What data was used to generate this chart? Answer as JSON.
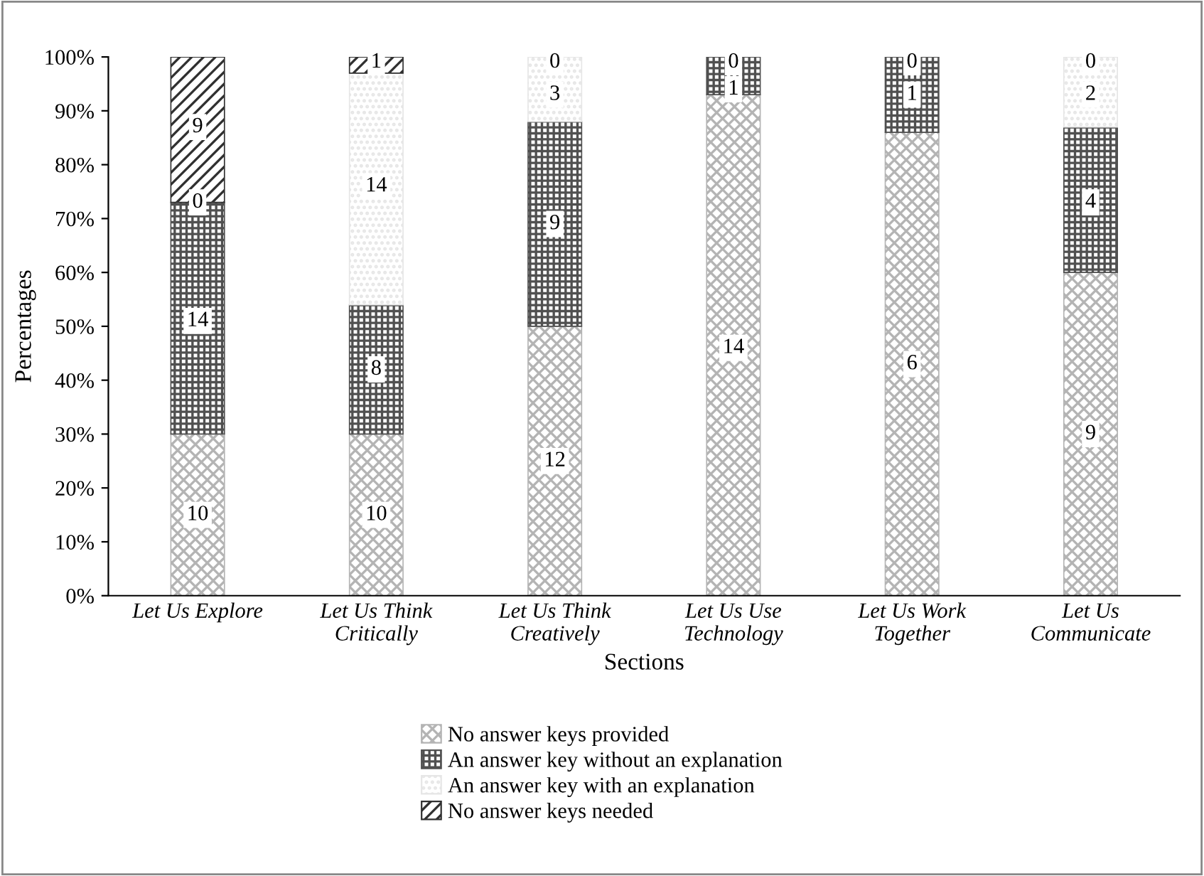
{
  "chart_data": {
    "type": "bar",
    "stacked": true,
    "categories": [
      "Let Us Explore",
      "Let Us Think\nCritically",
      "Let Us Think\nCreatively",
      "Let Us Use\nTechnology",
      "Let Us Work\nTogether",
      "Let Us\nCommunicate"
    ],
    "xlabel": "Sections",
    "ylabel": "Percentages",
    "series": [
      {
        "name": "No answer keys provided",
        "color": "#b4b4b4",
        "values": [
          30,
          30,
          50,
          93,
          86,
          60
        ]
      },
      {
        "name": "An answer key without an explanation",
        "color": "#505050",
        "values": [
          43,
          24,
          38,
          7,
          14,
          27
        ]
      },
      {
        "name": "An answer key with an explanation",
        "color": "#e6e6e6",
        "values": [
          0,
          43,
          12,
          0,
          0,
          13
        ]
      },
      {
        "name": "No answer keys needed",
        "color": "#303030",
        "values": [
          27,
          3,
          0,
          0,
          0,
          0
        ]
      }
    ],
    "annotations": [
      {
        "text": "10",
        "x": "Let Us Explore",
        "y": 15
      },
      {
        "text": "14",
        "x": "Let Us Explore",
        "y": 51
      },
      {
        "text": "0",
        "x": "Let Us Explore",
        "y": 73
      },
      {
        "text": "9",
        "x": "Let Us Explore",
        "y": 87
      },
      {
        "text": "10",
        "x": "Let Us Think\nCritically",
        "y": 15
      },
      {
        "text": "8",
        "x": "Let Us Think\nCritically",
        "y": 42
      },
      {
        "text": "14",
        "x": "Let Us Think\nCritically",
        "y": 76
      },
      {
        "text": "1",
        "x": "Let Us Think\nCritically",
        "y": 99
      },
      {
        "text": "12",
        "x": "Let Us Think\nCreatively",
        "y": 25
      },
      {
        "text": "9",
        "x": "Let Us Think\nCreatively",
        "y": 69
      },
      {
        "text": "3",
        "x": "Let Us Think\nCreatively",
        "y": 93
      },
      {
        "text": "0",
        "x": "Let Us Think\nCreatively",
        "y": 99
      },
      {
        "text": "14",
        "x": "Let Us Use\nTechnology",
        "y": 46
      },
      {
        "text": "1",
        "x": "Let Us Use\nTechnology",
        "y": 94
      },
      {
        "text": "0",
        "x": "Let Us Use\nTechnology",
        "y": 99
      },
      {
        "text": "6",
        "x": "Let Us Work\nTogether",
        "y": 43
      },
      {
        "text": "1",
        "x": "Let Us Work\nTogether",
        "y": 93
      },
      {
        "text": "0",
        "x": "Let Us Work\nTogether",
        "y": 99
      },
      {
        "text": "9",
        "x": "Let Us\nCommunicate",
        "y": 30
      },
      {
        "text": "4",
        "x": "Let Us\nCommunicate",
        "y": 73
      },
      {
        "text": "2",
        "x": "Let Us\nCommunicate",
        "y": 93
      },
      {
        "text": "0",
        "x": "Let Us\nCommunicate",
        "y": 99
      }
    ],
    "ylim": [
      0,
      100
    ],
    "yticks": [
      {
        "value": 0,
        "label": "0%"
      },
      {
        "value": 10,
        "label": "10%"
      },
      {
        "value": 20,
        "label": "20%"
      },
      {
        "value": 30,
        "label": "30%"
      },
      {
        "value": 40,
        "label": "40%"
      },
      {
        "value": 50,
        "label": "50%"
      },
      {
        "value": 60,
        "label": "60%"
      },
      {
        "value": 70,
        "label": "70%"
      },
      {
        "value": 80,
        "label": "80%"
      },
      {
        "value": 90,
        "label": "90%"
      },
      {
        "value": 100,
        "label": "100%"
      }
    ],
    "legend": "bottom"
  }
}
